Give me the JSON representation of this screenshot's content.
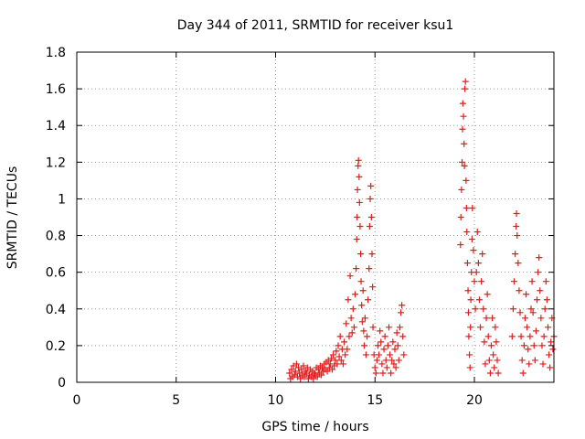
{
  "chart_data": {
    "type": "scatter",
    "title": "Day 344 of 2011, SRMTID for receiver ksu1",
    "xlabel": "GPS time / hours",
    "ylabel": "SRMTID / TECUs",
    "xlim": [
      0,
      24
    ],
    "ylim": [
      0,
      1.8
    ],
    "xticks": [
      0,
      5,
      10,
      15,
      20
    ],
    "yticks": [
      0,
      0.2,
      0.4,
      0.6,
      0.8,
      1,
      1.2,
      1.4,
      1.6,
      1.8
    ],
    "ytick_labels": [
      "0",
      "0.2",
      "0.4",
      "0.6",
      "0.8",
      "1",
      "1.2",
      "1.4",
      "1.6",
      "1.8"
    ],
    "grid": true,
    "marker": "+",
    "series": [
      {
        "name": "ksu1",
        "color": "#e41a1c",
        "points": [
          [
            10.7,
            0.05
          ],
          [
            10.75,
            0.02
          ],
          [
            10.8,
            0.07
          ],
          [
            10.85,
            0.03
          ],
          [
            10.9,
            0.09
          ],
          [
            10.95,
            0.04
          ],
          [
            11.0,
            0.06
          ],
          [
            11.05,
            0.1
          ],
          [
            11.1,
            0.03
          ],
          [
            11.15,
            0.08
          ],
          [
            11.2,
            0.05
          ],
          [
            11.25,
            0.02
          ],
          [
            11.3,
            0.07
          ],
          [
            11.35,
            0.04
          ],
          [
            11.4,
            0.09
          ],
          [
            11.45,
            0.03
          ],
          [
            11.5,
            0.06
          ],
          [
            11.55,
            0.05
          ],
          [
            11.6,
            0.08
          ],
          [
            11.65,
            0.02
          ],
          [
            11.7,
            0.04
          ],
          [
            11.75,
            0.07
          ],
          [
            11.8,
            0.03
          ],
          [
            11.85,
            0.06
          ],
          [
            11.9,
            0.02
          ],
          [
            11.95,
            0.05
          ],
          [
            12.0,
            0.04
          ],
          [
            12.05,
            0.08
          ],
          [
            12.1,
            0.03
          ],
          [
            12.15,
            0.07
          ],
          [
            12.2,
            0.05
          ],
          [
            12.25,
            0.09
          ],
          [
            12.3,
            0.04
          ],
          [
            12.35,
            0.08
          ],
          [
            12.4,
            0.06
          ],
          [
            12.45,
            0.1
          ],
          [
            12.5,
            0.07
          ],
          [
            12.55,
            0.11
          ],
          [
            12.6,
            0.06
          ],
          [
            12.65,
            0.12
          ],
          [
            12.7,
            0.08
          ],
          [
            12.75,
            0.1
          ],
          [
            12.8,
            0.13
          ],
          [
            12.85,
            0.07
          ],
          [
            12.9,
            0.15
          ],
          [
            12.95,
            0.09
          ],
          [
            13.0,
            0.12
          ],
          [
            13.05,
            0.17
          ],
          [
            13.1,
            0.1
          ],
          [
            13.15,
            0.2
          ],
          [
            13.2,
            0.14
          ],
          [
            13.25,
            0.25
          ],
          [
            13.3,
            0.12
          ],
          [
            13.35,
            0.18
          ],
          [
            13.4,
            0.1
          ],
          [
            13.45,
            0.22
          ],
          [
            13.5,
            0.15
          ],
          [
            13.55,
            0.32
          ],
          [
            13.6,
            0.18
          ],
          [
            13.65,
            0.45
          ],
          [
            13.7,
            0.25
          ],
          [
            13.75,
            0.58
          ],
          [
            13.8,
            0.35
          ],
          [
            13.85,
            0.27
          ],
          [
            13.9,
            0.4
          ],
          [
            13.95,
            0.3
          ],
          [
            14.0,
            0.48
          ],
          [
            14.05,
            0.62
          ],
          [
            14.08,
            0.78
          ],
          [
            14.1,
            0.9
          ],
          [
            14.12,
            1.05
          ],
          [
            14.15,
            1.18
          ],
          [
            14.17,
            1.21
          ],
          [
            14.2,
            1.12
          ],
          [
            14.22,
            0.98
          ],
          [
            14.25,
            0.85
          ],
          [
            14.28,
            0.7
          ],
          [
            14.3,
            0.55
          ],
          [
            14.33,
            0.42
          ],
          [
            14.36,
            0.33
          ],
          [
            14.4,
            0.5
          ],
          [
            14.43,
            0.28
          ],
          [
            14.46,
            0.2
          ],
          [
            14.5,
            0.35
          ],
          [
            14.55,
            0.15
          ],
          [
            14.6,
            0.25
          ],
          [
            14.65,
            0.45
          ],
          [
            14.7,
            0.62
          ],
          [
            14.73,
            0.85
          ],
          [
            14.76,
            1.0
          ],
          [
            14.79,
            1.07
          ],
          [
            14.82,
            0.9
          ],
          [
            14.85,
            0.7
          ],
          [
            14.88,
            0.52
          ],
          [
            14.9,
            0.3
          ],
          [
            14.95,
            0.15
          ],
          [
            15.0,
            0.08
          ],
          [
            15.05,
            0.05
          ],
          [
            15.1,
            0.12
          ],
          [
            15.15,
            0.2
          ],
          [
            15.2,
            0.15
          ],
          [
            15.25,
            0.28
          ],
          [
            15.3,
            0.22
          ],
          [
            15.35,
            0.1
          ],
          [
            15.4,
            0.05
          ],
          [
            15.45,
            0.18
          ],
          [
            15.5,
            0.25
          ],
          [
            15.55,
            0.12
          ],
          [
            15.6,
            0.08
          ],
          [
            15.65,
            0.2
          ],
          [
            15.7,
            0.3
          ],
          [
            15.75,
            0.15
          ],
          [
            15.8,
            0.05
          ],
          [
            15.85,
            0.12
          ],
          [
            15.9,
            0.22
          ],
          [
            15.95,
            0.1
          ],
          [
            16.0,
            0.18
          ],
          [
            16.05,
            0.08
          ],
          [
            16.1,
            0.27
          ],
          [
            16.15,
            0.2
          ],
          [
            16.2,
            0.12
          ],
          [
            16.25,
            0.3
          ],
          [
            16.3,
            0.38
          ],
          [
            16.35,
            0.42
          ],
          [
            16.4,
            0.25
          ],
          [
            16.45,
            0.15
          ],
          [
            19.3,
            0.75
          ],
          [
            19.32,
            0.9
          ],
          [
            19.35,
            1.05
          ],
          [
            19.38,
            1.2
          ],
          [
            19.4,
            1.38
          ],
          [
            19.42,
            1.52
          ],
          [
            19.45,
            1.45
          ],
          [
            19.48,
            1.3
          ],
          [
            19.5,
            1.18
          ],
          [
            19.52,
            1.6
          ],
          [
            19.55,
            1.64
          ],
          [
            19.58,
            1.1
          ],
          [
            19.6,
            0.95
          ],
          [
            19.62,
            0.82
          ],
          [
            19.65,
            0.65
          ],
          [
            19.68,
            0.5
          ],
          [
            19.7,
            0.38
          ],
          [
            19.72,
            0.25
          ],
          [
            19.75,
            0.15
          ],
          [
            19.78,
            0.08
          ],
          [
            19.8,
            0.3
          ],
          [
            19.82,
            0.45
          ],
          [
            19.85,
            0.6
          ],
          [
            19.88,
            0.78
          ],
          [
            19.9,
            0.95
          ],
          [
            19.95,
            0.72
          ],
          [
            20.0,
            0.55
          ],
          [
            20.05,
            0.4
          ],
          [
            20.1,
            0.6
          ],
          [
            20.15,
            0.82
          ],
          [
            20.2,
            0.65
          ],
          [
            20.25,
            0.45
          ],
          [
            20.3,
            0.3
          ],
          [
            20.35,
            0.55
          ],
          [
            20.4,
            0.7
          ],
          [
            20.45,
            0.4
          ],
          [
            20.5,
            0.22
          ],
          [
            20.55,
            0.1
          ],
          [
            20.6,
            0.35
          ],
          [
            20.65,
            0.48
          ],
          [
            20.7,
            0.25
          ],
          [
            20.75,
            0.12
          ],
          [
            20.8,
            0.05
          ],
          [
            20.85,
            0.2
          ],
          [
            20.9,
            0.35
          ],
          [
            20.95,
            0.15
          ],
          [
            21.0,
            0.08
          ],
          [
            21.05,
            0.3
          ],
          [
            21.1,
            0.22
          ],
          [
            21.15,
            0.12
          ],
          [
            21.2,
            0.05
          ],
          [
            21.9,
            0.25
          ],
          [
            21.95,
            0.4
          ],
          [
            22.0,
            0.55
          ],
          [
            22.05,
            0.7
          ],
          [
            22.1,
            0.85
          ],
          [
            22.12,
            0.92
          ],
          [
            22.15,
            0.8
          ],
          [
            22.2,
            0.65
          ],
          [
            22.25,
            0.5
          ],
          [
            22.3,
            0.38
          ],
          [
            22.35,
            0.25
          ],
          [
            22.4,
            0.12
          ],
          [
            22.45,
            0.05
          ],
          [
            22.5,
            0.2
          ],
          [
            22.55,
            0.35
          ],
          [
            22.6,
            0.48
          ],
          [
            22.65,
            0.3
          ],
          [
            22.7,
            0.18
          ],
          [
            22.75,
            0.1
          ],
          [
            22.8,
            0.25
          ],
          [
            22.85,
            0.4
          ],
          [
            22.9,
            0.55
          ],
          [
            22.95,
            0.38
          ],
          [
            23.0,
            0.2
          ],
          [
            23.05,
            0.12
          ],
          [
            23.1,
            0.28
          ],
          [
            23.15,
            0.45
          ],
          [
            23.2,
            0.6
          ],
          [
            23.25,
            0.68
          ],
          [
            23.3,
            0.5
          ],
          [
            23.35,
            0.35
          ],
          [
            23.4,
            0.2
          ],
          [
            23.45,
            0.1
          ],
          [
            23.5,
            0.25
          ],
          [
            23.55,
            0.4
          ],
          [
            23.6,
            0.55
          ],
          [
            23.65,
            0.45
          ],
          [
            23.7,
            0.3
          ],
          [
            23.75,
            0.15
          ],
          [
            23.8,
            0.08
          ],
          [
            23.85,
            0.22
          ],
          [
            23.9,
            0.35
          ],
          [
            23.95,
            0.18
          ],
          [
            24.0,
            0.25
          ]
        ]
      }
    ]
  }
}
